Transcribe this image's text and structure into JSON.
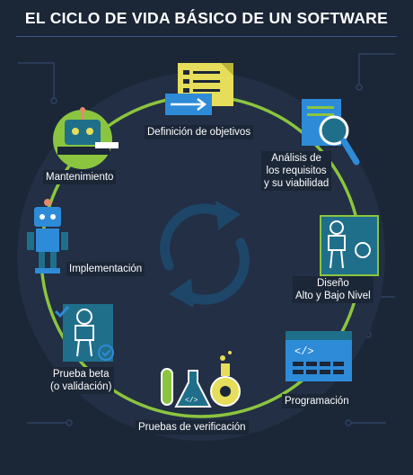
{
  "title": "EL CICLO DE VIDA BÁSICO DE UN SOFTWARE",
  "steps": [
    {
      "label": "Definición de objetivos"
    },
    {
      "label_lines": [
        "Análisis de",
        "los requisitos",
        "y su viabilidad"
      ]
    },
    {
      "label_lines": [
        "Diseño",
        "Alto y Bajo Nivel"
      ]
    },
    {
      "label": "Programación"
    },
    {
      "label": "Pruebas de verificación"
    },
    {
      "label_lines": [
        "Prueba beta",
        "(o validación)"
      ]
    },
    {
      "label": "Implementación"
    },
    {
      "label": "Mantenimiento"
    }
  ],
  "colors": {
    "background": "#1b2637",
    "cycle_line": "#8bc53f",
    "center_arrows": "#1e4669",
    "accent_blue": "#2e8bd8",
    "accent_teal": "#1f6f8b",
    "accent_yellow": "#e6dd5a"
  },
  "icons": [
    "document-icon",
    "magnifier-icon",
    "robot-blueprint-icon",
    "code-window-icon",
    "flasks-icon",
    "robot-check-icon",
    "robot-icon",
    "mechanic-robot-icon",
    "refresh-cycle-icon"
  ]
}
